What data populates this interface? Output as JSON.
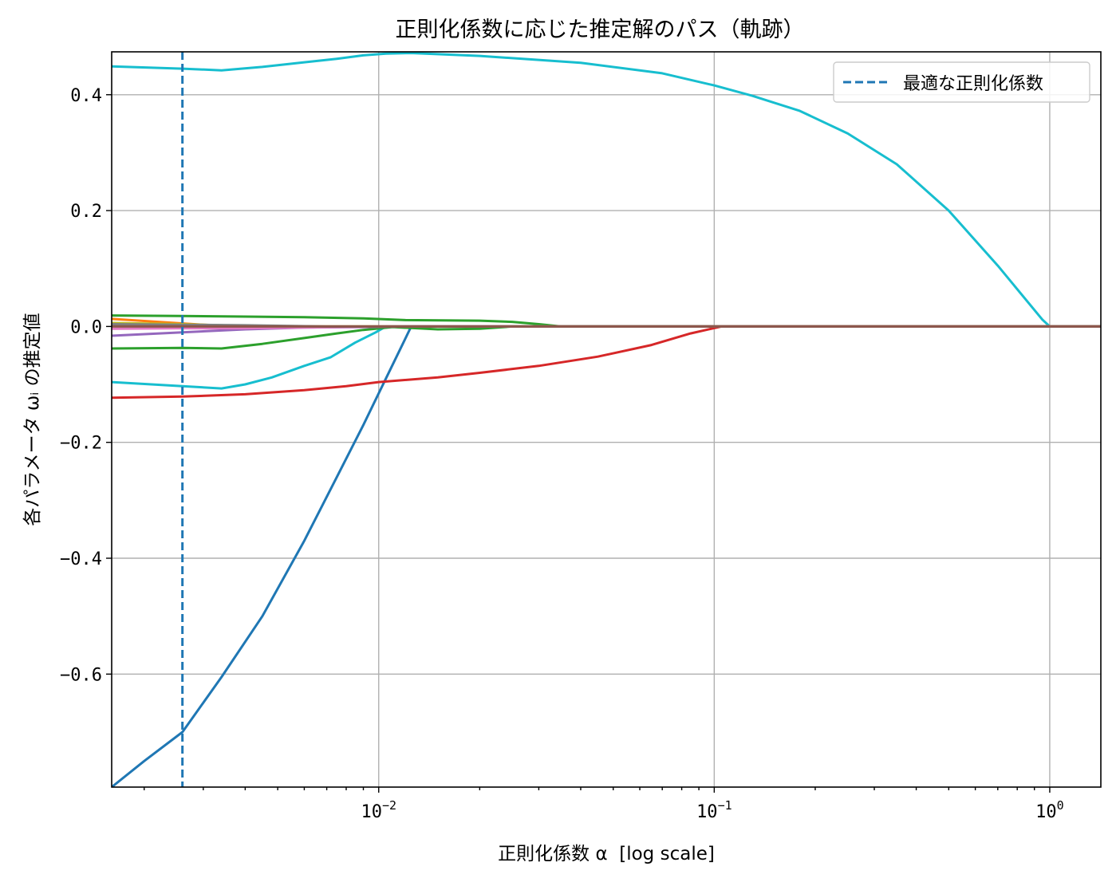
{
  "chart_data": {
    "type": "line",
    "title": "正則化係数に応じた推定解のパス（軌跡）",
    "xlabel": "正則化係数 α  [log scale]",
    "ylabel": "各パラメータ ωᵢ の推定値",
    "xscale": "log",
    "xlim": [
      0.0016,
      1.42
    ],
    "ylim": [
      -0.795,
      0.474
    ],
    "x_ticks": [
      {
        "value": 0.01,
        "base": "10",
        "exp": "−2"
      },
      {
        "value": 0.1,
        "base": "10",
        "exp": "−1"
      },
      {
        "value": 1,
        "base": "10",
        "exp": "0"
      }
    ],
    "y_ticks": [
      {
        "value": 0.4,
        "label": "0.4"
      },
      {
        "value": 0.2,
        "label": "0.2"
      },
      {
        "value": 0.0,
        "label": "0.0"
      },
      {
        "value": -0.2,
        "label": "−0.2"
      },
      {
        "value": -0.4,
        "label": "−0.4"
      },
      {
        "value": -0.6,
        "label": "−0.6"
      }
    ],
    "grid": true,
    "legend": {
      "placement": "upper right",
      "entries": [
        {
          "label": "最適な正則化係数",
          "style": "dashed",
          "color": "#1f77b4"
        }
      ]
    },
    "vline": {
      "x": 0.0026,
      "label": "最適な正則化係数",
      "color": "#1f77b4",
      "style": "dashed"
    },
    "series": [
      {
        "color": "#1f77b4",
        "points": [
          [
            0.0016,
            -0.795
          ],
          [
            0.002,
            -0.75
          ],
          [
            0.0026,
            -0.7
          ],
          [
            0.0034,
            -0.605
          ],
          [
            0.0045,
            -0.5
          ],
          [
            0.006,
            -0.37
          ],
          [
            0.0075,
            -0.26
          ],
          [
            0.009,
            -0.17
          ],
          [
            0.0105,
            -0.09
          ],
          [
            0.0125,
            0.0
          ],
          [
            1.42,
            0.0
          ]
        ]
      },
      {
        "color": "#17becf",
        "points": [
          [
            0.0016,
            0.449
          ],
          [
            0.0026,
            0.445
          ],
          [
            0.0034,
            0.442
          ],
          [
            0.0045,
            0.448
          ],
          [
            0.006,
            0.456
          ],
          [
            0.0075,
            0.462
          ],
          [
            0.009,
            0.468
          ],
          [
            0.0105,
            0.471
          ],
          [
            0.0125,
            0.472
          ],
          [
            0.02,
            0.467
          ],
          [
            0.04,
            0.455
          ],
          [
            0.07,
            0.437
          ],
          [
            0.1,
            0.416
          ],
          [
            0.13,
            0.398
          ],
          [
            0.18,
            0.372
          ],
          [
            0.25,
            0.333
          ],
          [
            0.35,
            0.28
          ],
          [
            0.5,
            0.2
          ],
          [
            0.7,
            0.105
          ],
          [
            0.95,
            0.012
          ],
          [
            1.0,
            0.0
          ],
          [
            1.42,
            0.0
          ]
        ]
      },
      {
        "color": "#17becf",
        "points": [
          [
            0.0016,
            -0.096
          ],
          [
            0.0026,
            -0.103
          ],
          [
            0.0034,
            -0.107
          ],
          [
            0.004,
            -0.1
          ],
          [
            0.0048,
            -0.088
          ],
          [
            0.006,
            -0.068
          ],
          [
            0.0072,
            -0.053
          ],
          [
            0.0085,
            -0.028
          ],
          [
            0.0098,
            -0.01
          ],
          [
            0.0105,
            0.0
          ],
          [
            1.42,
            0.0
          ]
        ]
      },
      {
        "color": "#2ca02c",
        "points": [
          [
            0.0016,
            0.019
          ],
          [
            0.0026,
            0.018
          ],
          [
            0.004,
            0.017
          ],
          [
            0.006,
            0.016
          ],
          [
            0.009,
            0.014
          ],
          [
            0.012,
            0.011
          ],
          [
            0.02,
            0.01
          ],
          [
            0.025,
            0.008
          ],
          [
            0.03,
            0.004
          ],
          [
            0.035,
            0.0
          ],
          [
            1.42,
            0.0
          ]
        ]
      },
      {
        "color": "#2ca02c",
        "points": [
          [
            0.0016,
            -0.038
          ],
          [
            0.0026,
            -0.037
          ],
          [
            0.0034,
            -0.038
          ],
          [
            0.0045,
            -0.03
          ],
          [
            0.006,
            -0.02
          ],
          [
            0.0075,
            -0.012
          ],
          [
            0.009,
            -0.006
          ],
          [
            0.011,
            -0.001
          ],
          [
            0.015,
            -0.005
          ],
          [
            0.02,
            -0.004
          ],
          [
            0.025,
            0.0
          ],
          [
            1.42,
            0.0
          ]
        ]
      },
      {
        "color": "#d62728",
        "points": [
          [
            0.0016,
            -0.123
          ],
          [
            0.0026,
            -0.121
          ],
          [
            0.004,
            -0.117
          ],
          [
            0.006,
            -0.11
          ],
          [
            0.008,
            -0.103
          ],
          [
            0.01,
            -0.096
          ],
          [
            0.015,
            -0.088
          ],
          [
            0.02,
            -0.08
          ],
          [
            0.03,
            -0.068
          ],
          [
            0.045,
            -0.052
          ],
          [
            0.065,
            -0.032
          ],
          [
            0.085,
            -0.012
          ],
          [
            0.105,
            0.0
          ],
          [
            1.42,
            0.0
          ]
        ]
      },
      {
        "color": "#ff7f0e",
        "points": [
          [
            0.0016,
            0.013
          ],
          [
            0.0022,
            0.008
          ],
          [
            0.003,
            0.003
          ],
          [
            0.004,
            0.0
          ],
          [
            1.42,
            0.0
          ]
        ]
      },
      {
        "color": "#9467bd",
        "points": [
          [
            0.0016,
            -0.016
          ],
          [
            0.0026,
            -0.01
          ],
          [
            0.004,
            -0.005
          ],
          [
            0.006,
            -0.002
          ],
          [
            0.009,
            -0.001
          ],
          [
            0.012,
            0.0
          ],
          [
            1.42,
            0.0
          ]
        ]
      },
      {
        "color": "#bcbd22",
        "points": [
          [
            0.0016,
            0.006
          ],
          [
            0.0026,
            0.004
          ],
          [
            0.004,
            0.001
          ],
          [
            0.005,
            0.0
          ],
          [
            1.42,
            0.0
          ]
        ]
      },
      {
        "color": "#e377c2",
        "points": [
          [
            0.0016,
            -0.004
          ],
          [
            0.0026,
            -0.003
          ],
          [
            0.004,
            -0.003
          ],
          [
            0.006,
            -0.002
          ],
          [
            0.01,
            0.0
          ],
          [
            1.42,
            0.0
          ]
        ]
      },
      {
        "color": "#7f7f7f",
        "points": [
          [
            0.0016,
            0.004
          ],
          [
            0.0026,
            0.003
          ],
          [
            0.004,
            0.002
          ],
          [
            0.007,
            0.0
          ],
          [
            1.42,
            0.0
          ]
        ]
      },
      {
        "color": "#8c564b",
        "points": [
          [
            0.0016,
            0.0
          ],
          [
            1.42,
            0.0
          ]
        ]
      }
    ]
  }
}
